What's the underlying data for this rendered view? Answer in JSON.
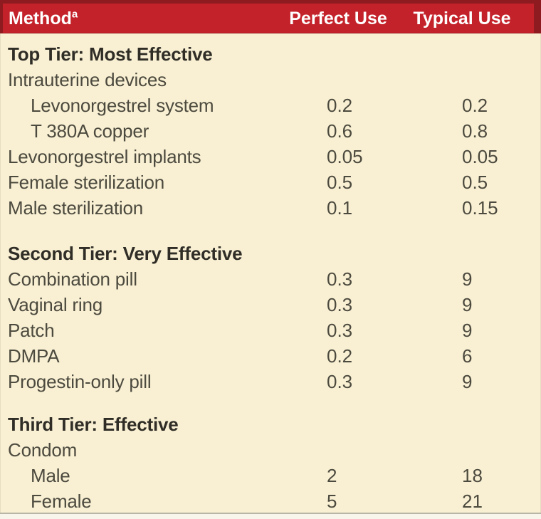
{
  "header": {
    "method_label": "Method",
    "method_footnote": "a",
    "perfect_label": "Perfect Use",
    "typical_label": "Typical Use"
  },
  "colors": {
    "header_red": "#c4222a",
    "border_maroon": "#8e1b1f",
    "background_cream": "#f9f0d4",
    "body_text": "#4c4a3e",
    "heading_text": "#2f2d26",
    "header_text": "#ffffff"
  },
  "table": {
    "columns": [
      "Method",
      "Perfect Use",
      "Typical Use"
    ],
    "sections": [
      {
        "heading": "Top Tier: Most Effective",
        "rows": [
          {
            "label": "Intrauterine devices",
            "indent": false,
            "perfect": "",
            "typical": ""
          },
          {
            "label": "Levonorgestrel system",
            "indent": true,
            "perfect": "0.2",
            "typical": "0.2"
          },
          {
            "label": "T 380A copper",
            "indent": true,
            "perfect": "0.6",
            "typical": "0.8"
          },
          {
            "label": "Levonorgestrel implants",
            "indent": false,
            "perfect": "0.05",
            "typical": "0.05"
          },
          {
            "label": "Female sterilization",
            "indent": false,
            "perfect": "0.5",
            "typical": "0.5"
          },
          {
            "label": "Male sterilization",
            "indent": false,
            "perfect": "0.1",
            "typical": "0.15"
          }
        ]
      },
      {
        "heading": "Second Tier: Very Effective",
        "rows": [
          {
            "label": "Combination pill",
            "indent": false,
            "perfect": "0.3",
            "typical": "9"
          },
          {
            "label": "Vaginal ring",
            "indent": false,
            "perfect": "0.3",
            "typical": "9"
          },
          {
            "label": "Patch",
            "indent": false,
            "perfect": "0.3",
            "typical": "9"
          },
          {
            "label": "DMPA",
            "indent": false,
            "perfect": "0.2",
            "typical": "6"
          },
          {
            "label": "Progestin-only pill",
            "indent": false,
            "perfect": "0.3",
            "typical": "9"
          }
        ]
      },
      {
        "heading": "Third Tier: Effective",
        "rows": [
          {
            "label": "Condom",
            "indent": false,
            "perfect": "",
            "typical": ""
          },
          {
            "label": "Male",
            "indent": true,
            "perfect": "2",
            "typical": "18"
          },
          {
            "label": "Female",
            "indent": true,
            "perfect": "5",
            "typical": "21"
          }
        ]
      }
    ]
  }
}
